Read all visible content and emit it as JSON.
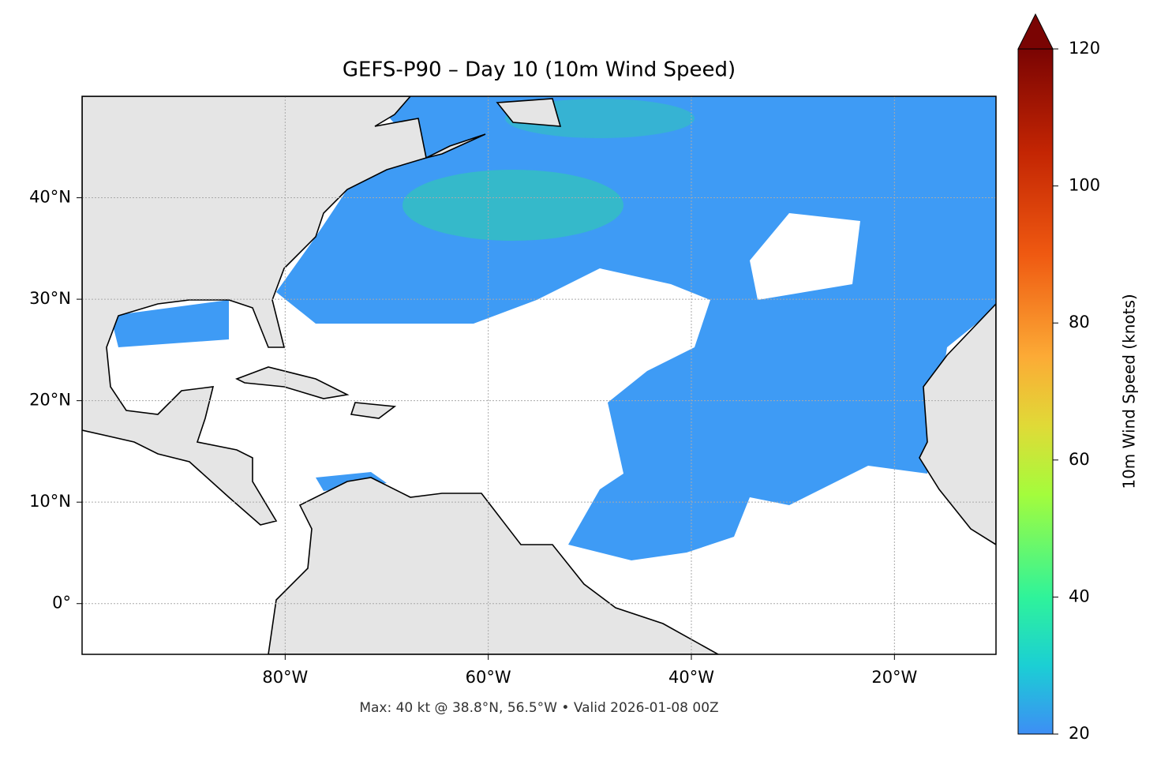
{
  "chart_data": {
    "type": "map",
    "title": "GEFS-P90 – Day 10 (10m Wind Speed)",
    "xlim": [
      -100,
      -10
    ],
    "ylim": [
      -5,
      50
    ],
    "xticks": [
      {
        "value": -80,
        "label": "80°W"
      },
      {
        "value": -60,
        "label": "60°W"
      },
      {
        "value": -40,
        "label": "40°W"
      },
      {
        "value": -20,
        "label": "20°W"
      }
    ],
    "yticks": [
      {
        "value": 0,
        "label": "0°"
      },
      {
        "value": 10,
        "label": "10°N"
      },
      {
        "value": 20,
        "label": "20°N"
      },
      {
        "value": 30,
        "label": "30°N"
      },
      {
        "value": 40,
        "label": "40°N"
      }
    ],
    "grid": true,
    "colorbar": {
      "label": "10m Wind Speed (knots)",
      "lim": [
        20,
        120
      ],
      "ticks": [
        20,
        40,
        60,
        80,
        100,
        120
      ],
      "extend": "max"
    },
    "footnote": "Max: 40 kt @ 38.8°N, 56.5°W • Valid 2026-01-08 00Z"
  }
}
